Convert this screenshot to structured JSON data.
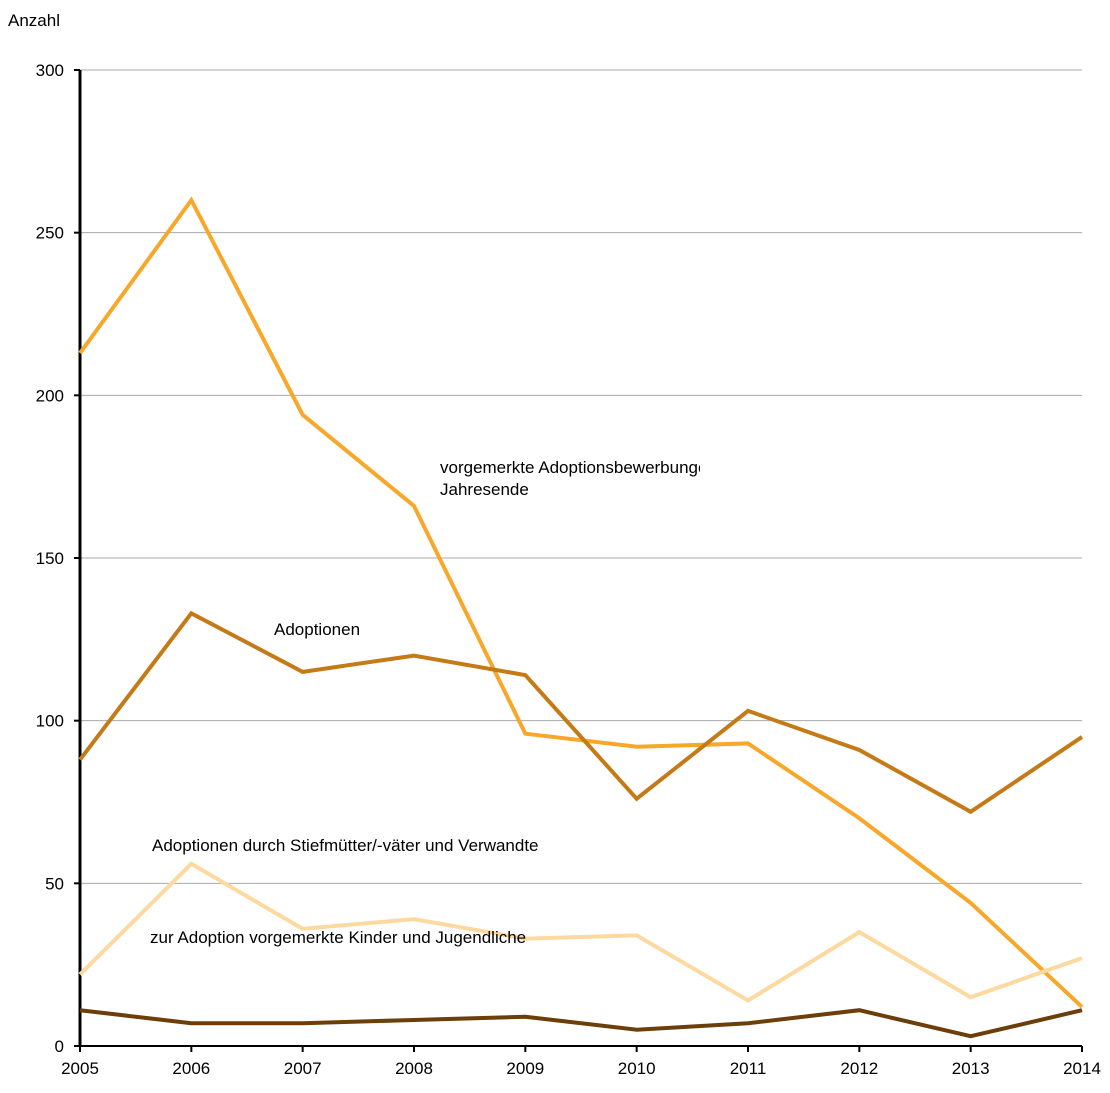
{
  "chart_data": {
    "type": "line",
    "y_label": "Anzahl",
    "categories": [
      "2005",
      "2006",
      "2007",
      "2008",
      "2009",
      "2010",
      "2011",
      "2012",
      "2013",
      "2014"
    ],
    "series": [
      {
        "name": "vorgemerkte Adoptionsbewerbungen am Jahresende",
        "color": "#f7a82a",
        "values": [
          213,
          260,
          194,
          166,
          96,
          92,
          93,
          70,
          44,
          12
        ]
      },
      {
        "name": "Adoptionen",
        "color": "#c47a16",
        "values": [
          88,
          133,
          115,
          120,
          114,
          76,
          103,
          91,
          72,
          95
        ]
      },
      {
        "name": "Adoptionen durch Stiefmütter/-väter und Verwandte",
        "color": "#fdd9a0",
        "values": [
          22,
          56,
          36,
          39,
          33,
          34,
          14,
          35,
          15,
          27
        ]
      },
      {
        "name": "zur Adoption vorgemerkte Kinder und Jugendliche",
        "color": "#6b3e0a",
        "values": [
          11,
          7,
          7,
          8,
          9,
          5,
          7,
          11,
          3,
          11
        ]
      }
    ],
    "ylim": [
      0,
      300
    ],
    "yticks": [
      0,
      50,
      100,
      150,
      200,
      250,
      300
    ],
    "grid": true
  }
}
